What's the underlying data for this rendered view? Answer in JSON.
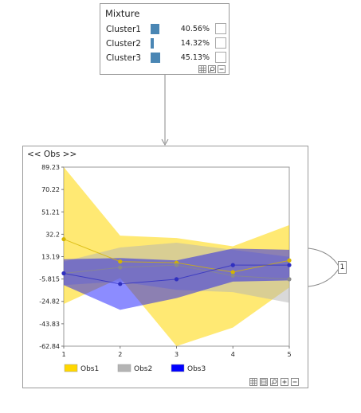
{
  "mixture": {
    "title": "Mixture",
    "rows": [
      {
        "name": "Cluster1",
        "pct": "40.56%",
        "value": 0.4056
      },
      {
        "name": "Cluster2",
        "pct": "14.32%",
        "value": 0.1432
      },
      {
        "name": "Cluster3",
        "pct": "45.13%",
        "value": 0.4513
      }
    ],
    "bar_color": "#4a86b4"
  },
  "obs_panel": {
    "title": "<< Obs >>"
  },
  "badge": {
    "label": "1"
  },
  "chart_data": {
    "type": "line",
    "x": [
      1,
      2,
      3,
      4,
      5
    ],
    "ylim": [
      -62.84,
      89.23
    ],
    "y_ticks": [
      "89.23",
      "70.22",
      "51.21",
      "32.2",
      "13.19",
      "-5.815",
      "-24.82",
      "-43.83",
      "-62.84"
    ],
    "x_ticks": [
      "1",
      "2",
      "3",
      "4",
      "5"
    ],
    "series": [
      {
        "name": "Obs1",
        "color": "#ffd700",
        "values": [
          28,
          9,
          8,
          0,
          10
        ],
        "upper": [
          89.23,
          31,
          29,
          22,
          40
        ],
        "lower": [
          -27,
          -5,
          -62.84,
          -47,
          -13
        ]
      },
      {
        "name": "Obs2",
        "color": "#b4b4b4",
        "values": [
          -1,
          4,
          6,
          -3,
          -6
        ],
        "upper": [
          9,
          21,
          25,
          19,
          13
        ],
        "lower": [
          -11,
          -8,
          -15,
          -17,
          -26
        ]
      },
      {
        "name": "Obs3",
        "color": "#0000ff",
        "values": [
          -1,
          -10,
          -6,
          6,
          6
        ],
        "upper": [
          11,
          12,
          10,
          20,
          19
        ],
        "lower": [
          -11,
          -32,
          -22,
          -8,
          -7
        ]
      }
    ]
  }
}
